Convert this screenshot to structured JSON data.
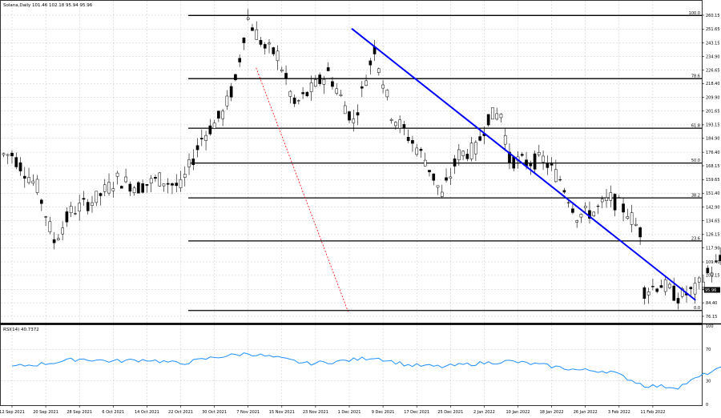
{
  "header": {
    "instrument": "Solana,Daily",
    "ohlc": "101.46 102.18 95.94 95.96"
  },
  "rsi_panel": {
    "label": "RSI(14) 40.7372"
  },
  "current_price": "95.96",
  "colors": {
    "candle": "#000000",
    "fib_line": "#000000",
    "trendline": "#0000ff",
    "dotted_line": "#ff0000",
    "rsi_line": "#1e90ff",
    "grid": "#c8c8c8",
    "frame": "#000000"
  },
  "chart_data": [
    {
      "type": "candlestick",
      "title": "Solana,Daily",
      "ylim": [
        76.15,
        264.5
      ],
      "x_ticks": [
        "12 Sep 2021",
        "20 Sep 2021",
        "28 Sep 2021",
        "6 Oct 2021",
        "14 Oct 2021",
        "22 Oct 2021",
        "30 Oct 2021",
        "7 Nov 2021",
        "15 Nov 2021",
        "23 Nov 2021",
        "1 Dec 2021",
        "9 Dec 2021",
        "17 Dec 2021",
        "25 Dec 2021",
        "2 Jan 2022",
        "10 Jan 2022",
        "18 Jan 2022",
        "26 Jan 2022",
        "3 Feb 2022",
        "11 Feb 2022"
      ],
      "y_ticks": [
        "260.15",
        "251.65",
        "243.15",
        "234.90",
        "226.65",
        "218.40",
        "209.90",
        "201.65",
        "193.15",
        "184.90",
        "176.40",
        "168.15",
        "159.65",
        "151.40",
        "142.90",
        "134.65",
        "126.15",
        "117.90",
        "109.40",
        "101.15",
        "92.65",
        "84.40",
        "76.15"
      ],
      "fib_levels": [
        {
          "label": "100.0",
          "value": 260.0
        },
        {
          "label": "78.6",
          "value": 221.4
        },
        {
          "label": "61.8",
          "value": 191.1
        },
        {
          "label": "50.0",
          "value": 169.8
        },
        {
          "label": "38.2",
          "value": 148.5
        },
        {
          "label": "23.6",
          "value": 122.2
        },
        {
          "label": "0.0",
          "value": 79.7
        }
      ],
      "trendline": {
        "from_date": "1 Dec 2021",
        "from_value": 252.0,
        "to_date": "20 Feb 2022",
        "to_value": 86.0
      },
      "dotted_line": {
        "from_date": "7 Nov 2021",
        "from_value": 228.0,
        "to_date": "29 Nov 2021",
        "to_value": 79.0
      },
      "grid": true
    },
    {
      "type": "line",
      "title": "RSI(14) 40.7372",
      "ylim": [
        0,
        100
      ],
      "y_ticks": [
        "100",
        "70",
        "30",
        "0"
      ],
      "line_width": 1
    }
  ]
}
